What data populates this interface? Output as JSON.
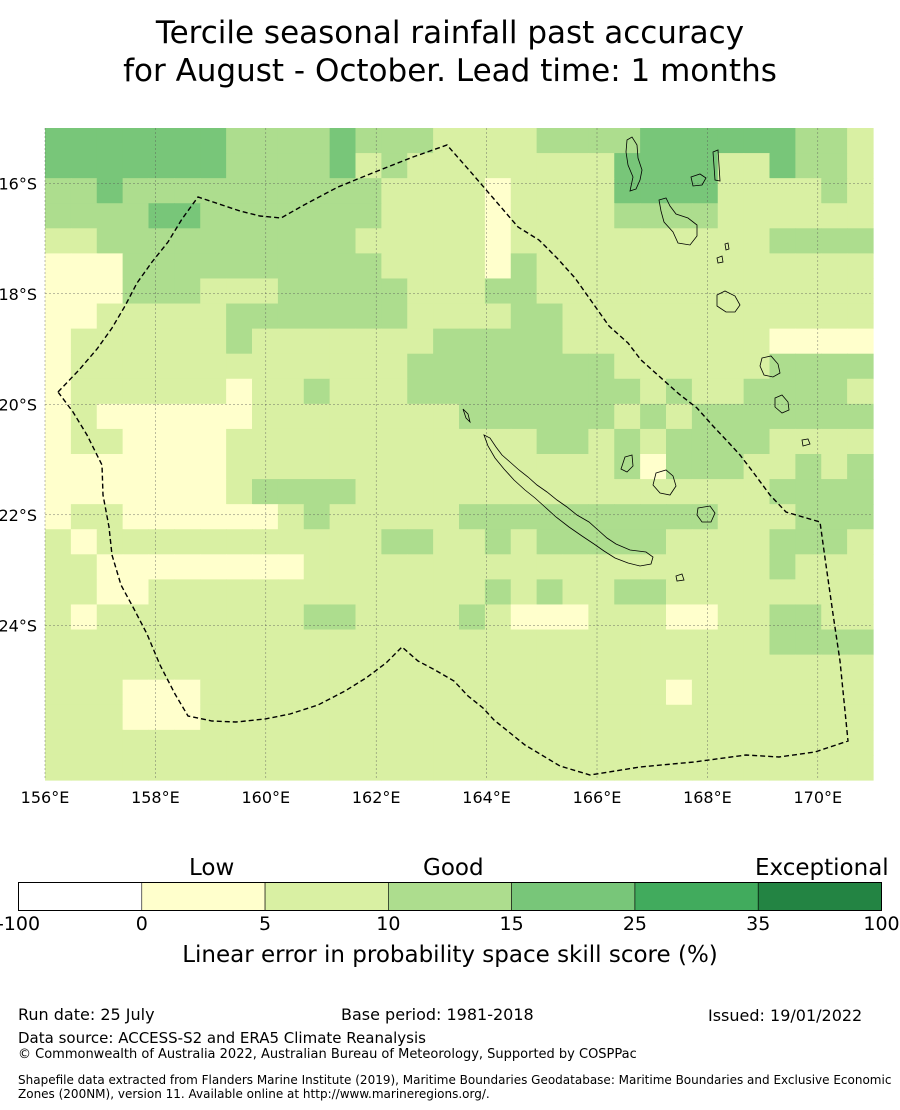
{
  "title_line1": "Tercile seasonal rainfall past accuracy",
  "title_line2": "for August - October. Lead time: 1 months",
  "map": {
    "lon_range": [
      156,
      171
    ],
    "lat_range": [
      -26.8,
      -15
    ],
    "lon_ticks": [
      "156°E",
      "158°E",
      "160°E",
      "162°E",
      "164°E",
      "166°E",
      "168°E",
      "170°E"
    ],
    "lat_ticks": [
      "16°S",
      "18°S",
      "20°S",
      "22°S",
      "24°S"
    ],
    "boundary": "dashed EEZ boundary (New Caledonia)",
    "grid_colors": {
      "0": "#ffffcc",
      "1": "#d9f0a3",
      "2": "#addd8e",
      "3": "#78c679",
      "W": "#ffffff"
    },
    "grid_rows": [
      "33333332222322211112222333333221",
      "33333332222312111111113333113221",
      "22322222222221111011113333111121",
      "22223322222221111011112222111111",
      "11222222222211111011111111112222",
      "00022222222221111021111111111111",
      "00022211122222111221111111111111",
      "00111112222222111122111111111111",
      "01111112111111122222111111110000",
      "01111111111111222222221111112222",
      "01111110112111222222222121122221",
      "01000000111111112222221212222222",
      "01100001111111111112212122221111",
      "00000001111111111111112022211212",
      "00000001222211111111111111112222",
      "01100000012111112222222222111222",
      "10111111111112211212222211112221",
      "11000000001111111111111111112111",
      "11001111111111111212112211111111",
      "10111111112211112100011100112211",
      "11111111111111111111111111112222",
      "11111111111111111111111111111111",
      "11100011111111111111111101111111",
      "11100011111111111111111111111111",
      "11111111111111111111111111111111",
      "11111111111111111111111111111111"
    ],
    "colors": {
      "coast": "#000000",
      "boundary": "#000000",
      "grid": "#555555"
    }
  },
  "legend": {
    "categories": [
      "Low",
      "Good",
      "Exceptional"
    ],
    "bins": [
      {
        "from": "-100",
        "to": "0",
        "color": "#ffffff"
      },
      {
        "from": "0",
        "to": "5",
        "color": "#ffffcc"
      },
      {
        "from": "5",
        "to": "10",
        "color": "#d9f0a3"
      },
      {
        "from": "10",
        "to": "15",
        "color": "#addd8e"
      },
      {
        "from": "15",
        "to": "25",
        "color": "#78c679"
      },
      {
        "from": "25",
        "to": "35",
        "color": "#41ab5d"
      },
      {
        "from": "35",
        "to": "100",
        "color": "#238443"
      }
    ],
    "ticks": [
      "-100",
      "0",
      "5",
      "10",
      "15",
      "25",
      "35",
      "100"
    ],
    "title": "Linear error in probability space skill score (%)"
  },
  "footer": {
    "run_date": "Run date: 25 July",
    "base_period": "Base period: 1981-2018",
    "issued": "Issued: 19/01/2022",
    "data_source": "Data source: ACCESS-S2 and ERA5 Climate Reanalysis",
    "copyright": "© Commonwealth of Australia 2022, Australian Bureau of Meteorology, Supported by COSPPac",
    "shapefile": "Shapefile data extracted from Flanders Marine Institute (2019), Maritime Boundaries Geodatabase: Maritime Boundaries and Exclusive Economic Zones (200NM), version 11. Available online at http://www.marineregions.org/."
  }
}
